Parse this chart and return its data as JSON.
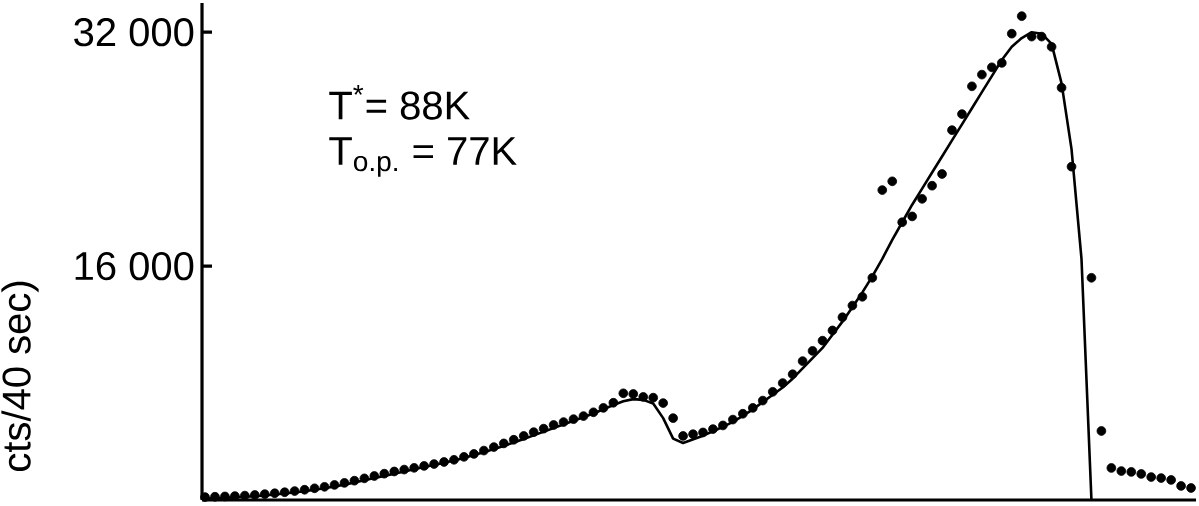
{
  "chart_data": {
    "type": "scatter",
    "ylabel": "cts/40 sec)",
    "categories": [
      null,
      null,
      null,
      null,
      null,
      null,
      null,
      null,
      null,
      null,
      null,
      null,
      null,
      null,
      null,
      null,
      null,
      null,
      null,
      null,
      null,
      null,
      null,
      null,
      null,
      null,
      null,
      null,
      null,
      null,
      null,
      null,
      null,
      null,
      null,
      null,
      null,
      null,
      null,
      null,
      null,
      null,
      null,
      null,
      null,
      null,
      null,
      null,
      null,
      null,
      null,
      null,
      null,
      null,
      null,
      null,
      null,
      null,
      null,
      null,
      null,
      null,
      null,
      null,
      null,
      null,
      null,
      null,
      null,
      null,
      null,
      null,
      null,
      null,
      null,
      null,
      null,
      null,
      null,
      null,
      null,
      null,
      null,
      null,
      null,
      null,
      null,
      null,
      null,
      null,
      null,
      null,
      null,
      null,
      null,
      null,
      null,
      null,
      null,
      null
    ],
    "series": [
      {
        "color": "#000000",
        "values": [
          200,
          220,
          240,
          270,
          300,
          340,
          400,
          460,
          530,
          610,
          700,
          800,
          900,
          1030,
          1170,
          1320,
          1480,
          1640,
          1800,
          1950,
          2080,
          2200,
          2330,
          2460,
          2600,
          2750,
          2950,
          3150,
          3380,
          3620,
          3870,
          4120,
          4380,
          4640,
          4880,
          5130,
          5330,
          5530,
          5740,
          6000,
          6300,
          6650,
          7300,
          7250,
          7050,
          7000,
          6630,
          5600,
          4380,
          4500,
          4620,
          4850,
          5100,
          5500,
          5900,
          6300,
          6800,
          7400,
          8000,
          8600,
          9500,
          10200,
          10900,
          11600,
          12500,
          13300,
          13900,
          15200,
          21200,
          21800,
          19000,
          19400,
          20600,
          21500,
          22300,
          25300,
          26400,
          28300,
          29100,
          29600,
          29900,
          31900,
          33100,
          31700,
          31700,
          31000,
          28200,
          22800,
          null,
          15200,
          4720,
          2190,
          1980,
          1920,
          1780,
          1570,
          1500,
          1370,
          960,
          820
        ]
      },
      {
        "type": "line",
        "color": "#000000",
        "values": [
          100,
          120,
          150,
          180,
          220,
          260,
          310,
          370,
          440,
          520,
          600,
          700,
          800,
          920,
          1050,
          1200,
          1350,
          1500,
          1650,
          1800,
          1950,
          2100,
          2250,
          2400,
          2550,
          2700,
          2880,
          3070,
          3270,
          3480,
          3700,
          3930,
          4170,
          4420,
          4670,
          4920,
          5170,
          5420,
          5670,
          5920,
          6200,
          6500,
          6750,
          6900,
          6850,
          6600,
          5600,
          4200,
          3900,
          4150,
          4400,
          4700,
          5000,
          5350,
          5750,
          6200,
          6700,
          7200,
          7700,
          8300,
          9000,
          9700,
          10400,
          11300,
          12200,
          13200,
          14200,
          15300,
          16500,
          17800,
          19000,
          20200,
          21300,
          22400,
          23500,
          24600,
          25700,
          26800,
          27900,
          29000,
          30100,
          31000,
          31600,
          32000,
          31900,
          31200,
          28500,
          24000,
          16500,
          0,
          null,
          null,
          null,
          null,
          null,
          null,
          null,
          null,
          null,
          null
        ]
      }
    ],
    "line_style": "solid",
    "ylim": [
      0,
      34000
    ],
    "yticks": [
      {
        "value": 16000,
        "label": "16 000"
      },
      {
        "value": 32000,
        "label": "32 000"
      }
    ],
    "tick_labels": "y",
    "grid": false,
    "annotations": [
      "T$^{*}$= 88K",
      "T$_{o.p.}$ = 77K"
    ]
  }
}
